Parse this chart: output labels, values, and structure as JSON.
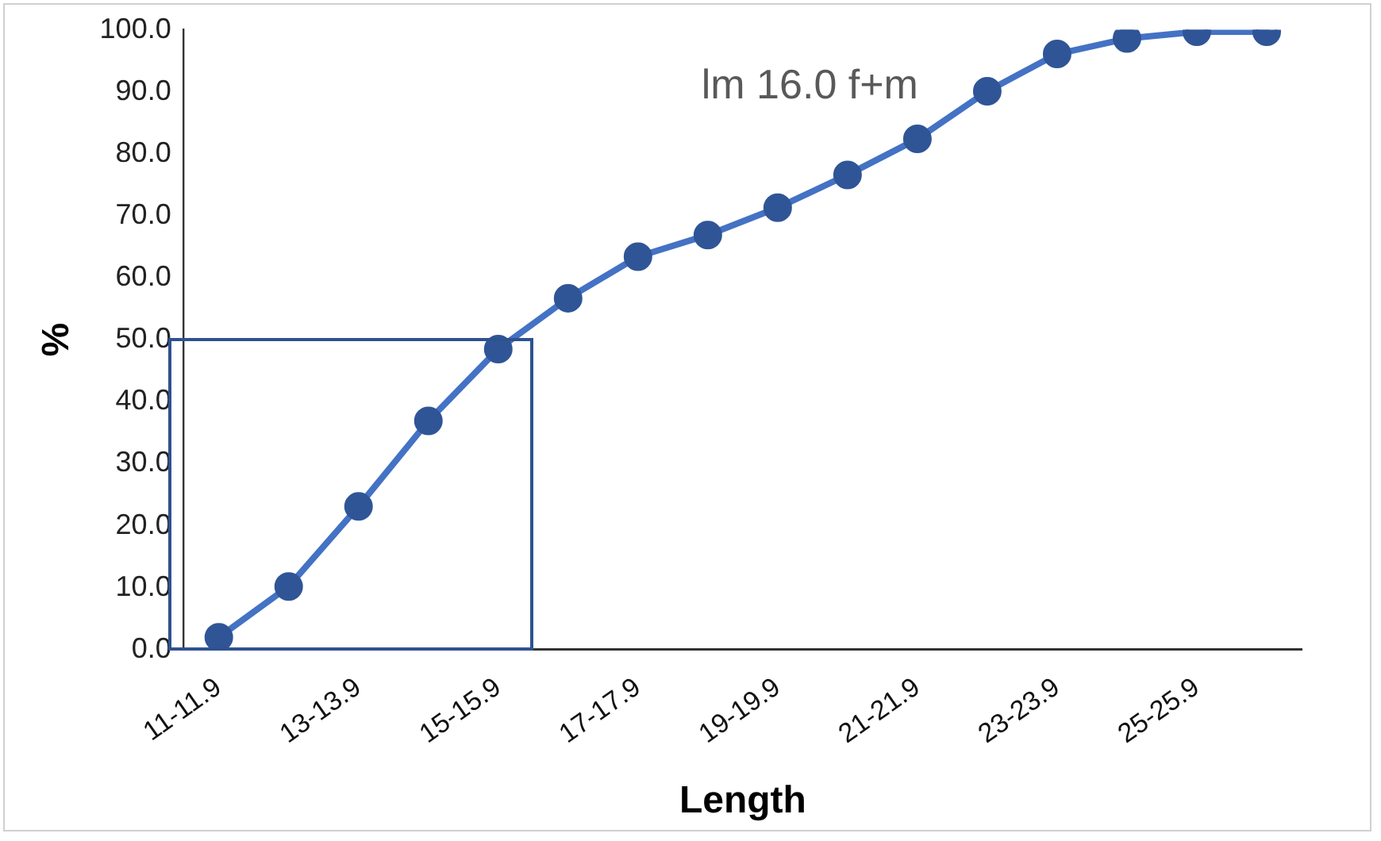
{
  "chart_data": {
    "type": "line",
    "xlabel": "Length",
    "ylabel": "%",
    "annotations": [
      "lm 16.0 f+m"
    ],
    "categories": [
      "11-11.9",
      null,
      "13-13.9",
      null,
      "15-15.9",
      null,
      "17-17.9",
      null,
      "19-19.9",
      null,
      "21-21.9",
      null,
      "23-23.9",
      null,
      "25-25.9",
      null
    ],
    "series": [
      {
        "color": "#4472c4",
        "values": [
          2.0,
          10.2,
          23.1,
          36.9,
          48.5,
          56.7,
          63.4,
          66.9,
          71.3,
          76.6,
          82.4,
          90.1,
          96.1,
          98.6,
          99.7,
          99.7
        ]
      }
    ],
    "ylim": [
      0,
      100
    ],
    "yticks": [
      {
        "value": 0,
        "label": "0.0"
      },
      {
        "value": 10,
        "label": "10.0"
      },
      {
        "value": 20,
        "label": "20.0"
      },
      {
        "value": 30,
        "label": "30.0"
      },
      {
        "value": 40,
        "label": "40.0"
      },
      {
        "value": 50,
        "label": "50.0"
      },
      {
        "value": 60,
        "label": "60.0"
      },
      {
        "value": 70,
        "label": "70.0"
      },
      {
        "value": 80,
        "label": "80.0"
      },
      {
        "value": 90,
        "label": "90.0"
      },
      {
        "value": 100,
        "label": "100.0"
      }
    ],
    "grid": false,
    "legend": false,
    "marker": "circle",
    "line_style": "solid"
  }
}
